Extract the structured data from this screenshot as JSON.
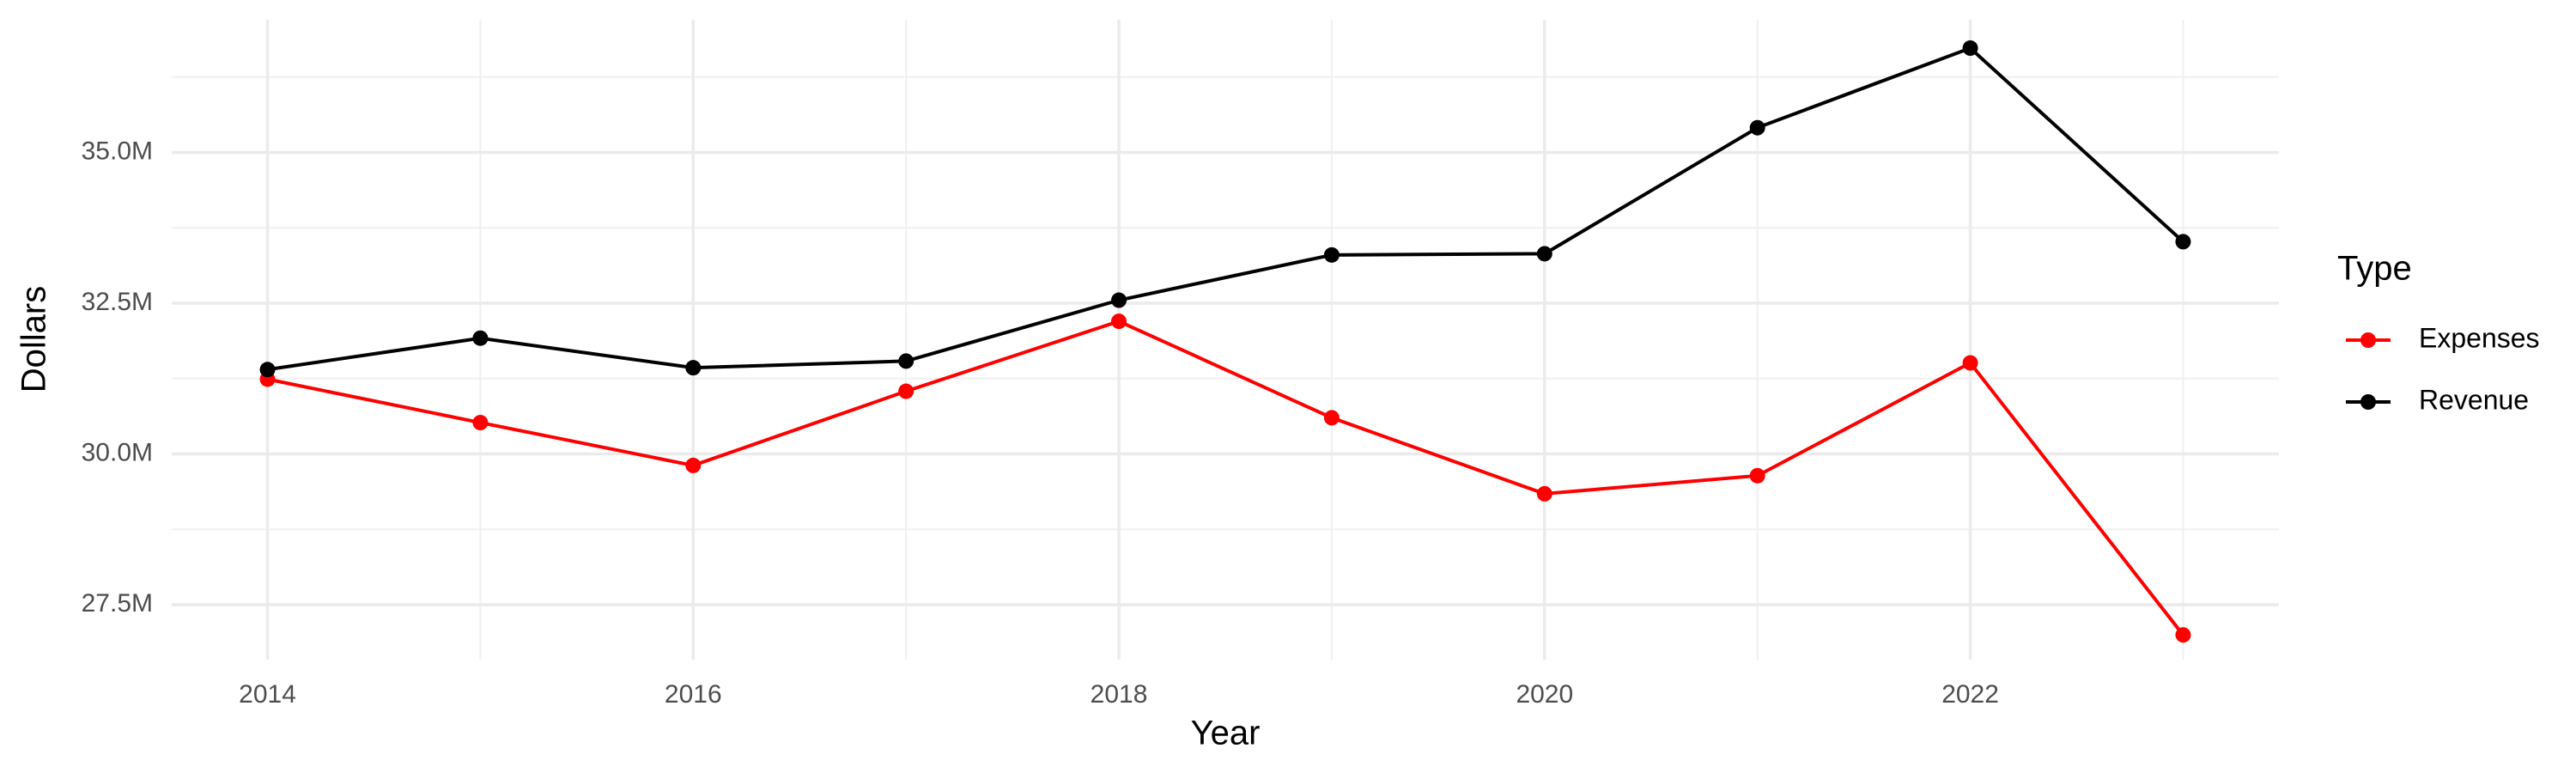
{
  "chart_data": {
    "type": "line",
    "x_label": "Year",
    "y_label": "Dollars",
    "x": [
      2014,
      2015,
      2016,
      2017,
      2018,
      2019,
      2020,
      2021,
      2022,
      2023
    ],
    "series": [
      {
        "name": "Expenses",
        "color": "#ff0000",
        "values": [
          31240000,
          30520000,
          29810000,
          31040000,
          32200000,
          30600000,
          29340000,
          29640000,
          31510000,
          27000000
        ]
      },
      {
        "name": "Revenue",
        "color": "#000000",
        "values": [
          31400000,
          31920000,
          31430000,
          31540000,
          32550000,
          33300000,
          33320000,
          35410000,
          36730000,
          33520000
        ]
      }
    ],
    "xlim": [
      2013.55,
      2023.45
    ],
    "xticks": [
      2014,
      2016,
      2018,
      2020,
      2022
    ],
    "ylim": [
      26590000,
      37200000
    ],
    "yticks": [
      {
        "value": 27500000,
        "label": "27.5M"
      },
      {
        "value": 30000000,
        "label": "30.0M"
      },
      {
        "value": 32500000,
        "label": "32.5M"
      },
      {
        "value": 35000000,
        "label": "35.0M"
      }
    ],
    "grid": true,
    "minor_grid": true,
    "legend_title": "Type",
    "legend_position": "right"
  }
}
